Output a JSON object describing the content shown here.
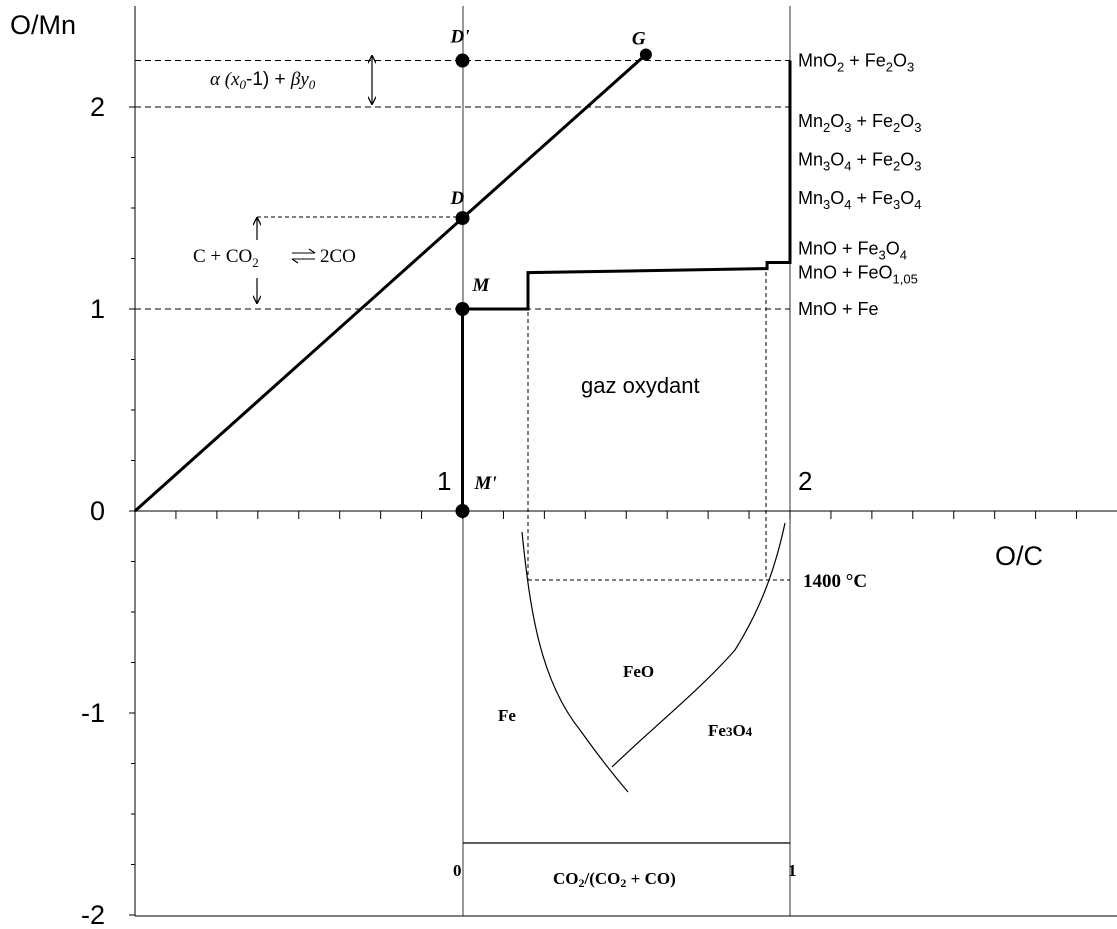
{
  "chart_data": {
    "type": "line",
    "xlabel": "O/C",
    "ylabel": "O/Mn",
    "xlim": [
      0,
      3
    ],
    "ylim": [
      -2,
      2.25
    ],
    "yticks": [
      "-2",
      "-1",
      "0",
      "1",
      "2"
    ],
    "x_markers": [
      "1",
      "2"
    ],
    "series": [
      {
        "id": "gas-line",
        "values": [
          [
            0,
            0
          ],
          [
            1,
            1.45
          ],
          [
            1.56,
            2.26
          ]
        ]
      },
      {
        "id": "reduction-path",
        "values": [
          [
            1,
            0
          ],
          [
            1,
            1
          ],
          [
            1.2,
            1
          ],
          [
            1.2,
            1.18
          ],
          [
            1.93,
            1.2
          ],
          [
            1.93,
            1.23
          ],
          [
            2,
            1.23
          ],
          [
            2,
            2.23
          ]
        ]
      }
    ],
    "points": [
      {
        "label": "D'",
        "x": 1,
        "y": 2.23
      },
      {
        "label": "G",
        "x": 1.56,
        "y": 2.26
      },
      {
        "label": "D",
        "x": 1,
        "y": 1.45
      },
      {
        "label": "M",
        "x": 1,
        "y": 1
      },
      {
        "label": "M'",
        "x": 1,
        "y": 0
      }
    ],
    "reference_lines": [
      2.23,
      2,
      1.45,
      1
    ],
    "phase_labels": [
      {
        "main": "MnO",
        "sub": "2",
        "rest": " + Fe",
        "sub2": "2",
        "tail": "O",
        "sub3": "3",
        "end": "",
        "y": 2.23
      },
      {
        "main": "Mn",
        "sub": "2",
        "rest": "O",
        "sub2": "3",
        "tail": " + Fe",
        "sub3": "2",
        "end": "O",
        "sub4": "3",
        "y": 1.93
      },
      {
        "main": "Mn",
        "sub": "3",
        "rest": "O",
        "sub2": "4",
        "tail": " + Fe",
        "sub3": "2",
        "end": "O",
        "sub4": "3",
        "y": 1.74
      },
      {
        "main": "Mn",
        "sub": "3",
        "rest": "O",
        "sub2": "4",
        "tail": " + Fe",
        "sub3": "3",
        "end": "O",
        "sub4": "4",
        "y": 1.55
      },
      {
        "main": "MnO + Fe",
        "sub": "3",
        "rest": "O",
        "sub2": "4",
        "tail": "",
        "y": 1.3
      },
      {
        "main": "MnO + FeO",
        "sub": "1,05",
        "rest": "",
        "y": 1.18
      },
      {
        "main": "MnO + Fe",
        "y": 1.0
      }
    ],
    "annotations": {
      "alpha_label_main": "α (",
      "alpha_x": "x",
      "alpha_sub0": "0",
      "alpha_mid": "-1) + ",
      "alpha_beta": "βy",
      "alpha_sub1": "0",
      "reaction_left": "C + CO",
      "reaction_sub": "2",
      "reaction_right": "2CO",
      "gas_label": "gaz oxydant",
      "temperature": "1400 °C"
    },
    "inset": {
      "xlabel": "CO2/(CO2 + CO)",
      "xlabel_parts": {
        "a": "CO",
        "a_sub": "2",
        "b": "/(CO",
        "b_sub": "2",
        "c": " + CO)"
      },
      "xticks": [
        "0",
        "1"
      ],
      "regions": {
        "fe": "Fe",
        "feo": "FeO",
        "fe3o4_a": "Fe",
        "fe3o4_sub1": "3",
        "fe3o4_b": "O",
        "fe3o4_sub2": "4"
      }
    }
  }
}
